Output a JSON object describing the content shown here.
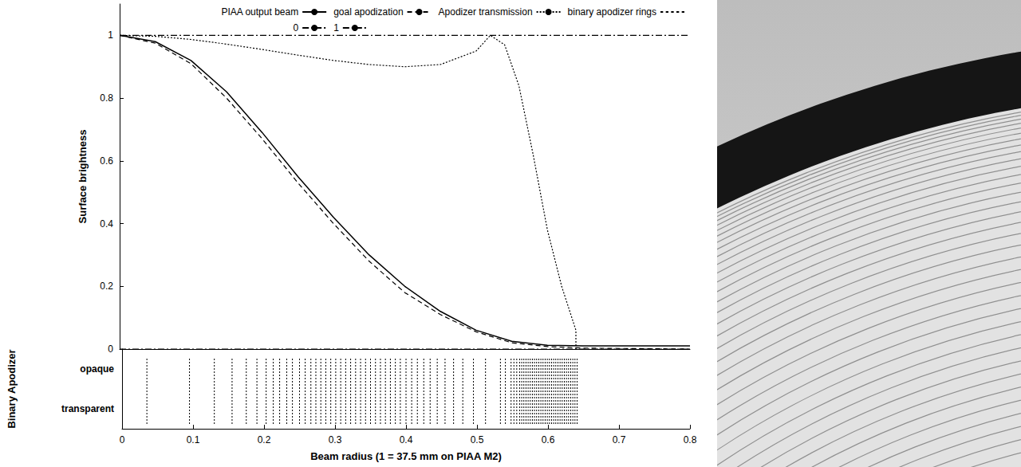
{
  "chart_data": {
    "type": "line",
    "xlabel": "Beam radius (1 = 37.5 mm on PIAA M2)",
    "ylabel": "Surface brightness",
    "xlim": [
      0,
      0.8
    ],
    "xticks": [
      0,
      0.1,
      0.2,
      0.3,
      0.4,
      0.5,
      0.6,
      0.7,
      0.8
    ],
    "ylim": [
      0,
      1.1
    ],
    "yticks": [
      0,
      0.2,
      0.4,
      0.6,
      0.8,
      1
    ],
    "lower_ylabel": "Binary Apodizer",
    "lower_categories": [
      "transparent",
      "opaque"
    ],
    "legend": "upper right",
    "grid": false,
    "series": [
      {
        "name": "PIAA output beam",
        "color": "#000000",
        "line_style": "solid",
        "x": [
          0,
          0.05,
          0.1,
          0.15,
          0.2,
          0.25,
          0.3,
          0.35,
          0.4,
          0.45,
          0.5,
          0.55,
          0.6,
          0.65,
          0.8
        ],
        "values": [
          1,
          0.98,
          0.92,
          0.82,
          0.69,
          0.55,
          0.42,
          0.3,
          0.2,
          0.12,
          0.06,
          0.025,
          0.012,
          0.01,
          0.01
        ]
      },
      {
        "name": "goal apodization",
        "color": "#000000",
        "line_style": "dashed",
        "x": [
          0,
          0.05,
          0.1,
          0.15,
          0.2,
          0.25,
          0.3,
          0.35,
          0.4,
          0.45,
          0.5,
          0.55,
          0.6,
          0.65,
          0.8
        ],
        "values": [
          1,
          0.975,
          0.91,
          0.8,
          0.67,
          0.53,
          0.4,
          0.28,
          0.18,
          0.11,
          0.055,
          0.02,
          0.008,
          0.003,
          0
        ]
      },
      {
        "name": "Apodizer transmission",
        "color": "#000000",
        "line_style": "dotted",
        "x": [
          0,
          0.05,
          0.1,
          0.15,
          0.2,
          0.25,
          0.3,
          0.35,
          0.4,
          0.45,
          0.5,
          0.52,
          0.54,
          0.56,
          0.58,
          0.6,
          0.62,
          0.64,
          0.64
        ],
        "values": [
          1,
          0.997,
          0.987,
          0.972,
          0.955,
          0.937,
          0.92,
          0.907,
          0.9,
          0.907,
          0.95,
          1,
          0.97,
          0.84,
          0.62,
          0.38,
          0.2,
          0.06,
          0
        ]
      },
      {
        "name": "binary apodizer rings",
        "type": "vlines",
        "color": "#000000",
        "line_style": "dotted",
        "x": [
          0.035,
          0.095,
          0.13,
          0.155,
          0.175,
          0.19,
          0.203,
          0.213,
          0.222,
          0.232,
          0.24,
          0.25,
          0.258,
          0.266,
          0.273,
          0.28,
          0.287,
          0.294,
          0.301,
          0.308,
          0.315,
          0.322,
          0.329,
          0.336,
          0.343,
          0.35,
          0.357,
          0.364,
          0.371,
          0.378,
          0.385,
          0.392,
          0.4,
          0.408,
          0.416,
          0.425,
          0.434,
          0.444,
          0.455,
          0.467,
          0.48,
          0.495,
          0.512,
          0.533,
          0.54,
          0.548,
          0.552,
          0.556,
          0.56,
          0.563,
          0.566,
          0.569,
          0.572,
          0.575,
          0.578,
          0.581,
          0.584,
          0.587,
          0.59,
          0.593,
          0.596,
          0.599,
          0.602,
          0.605,
          0.608,
          0.611,
          0.614,
          0.617,
          0.62,
          0.623,
          0.626,
          0.629,
          0.632,
          0.635,
          0.638,
          0.641
        ]
      },
      {
        "name": "0",
        "color": "#000000",
        "line_style": "dashdot",
        "x": [
          0,
          0.8
        ],
        "values": [
          0,
          0
        ]
      },
      {
        "name": "1",
        "color": "#000000",
        "line_style": "dashdot",
        "x": [
          0,
          0.8
        ],
        "values": [
          1,
          1
        ]
      }
    ]
  }
}
